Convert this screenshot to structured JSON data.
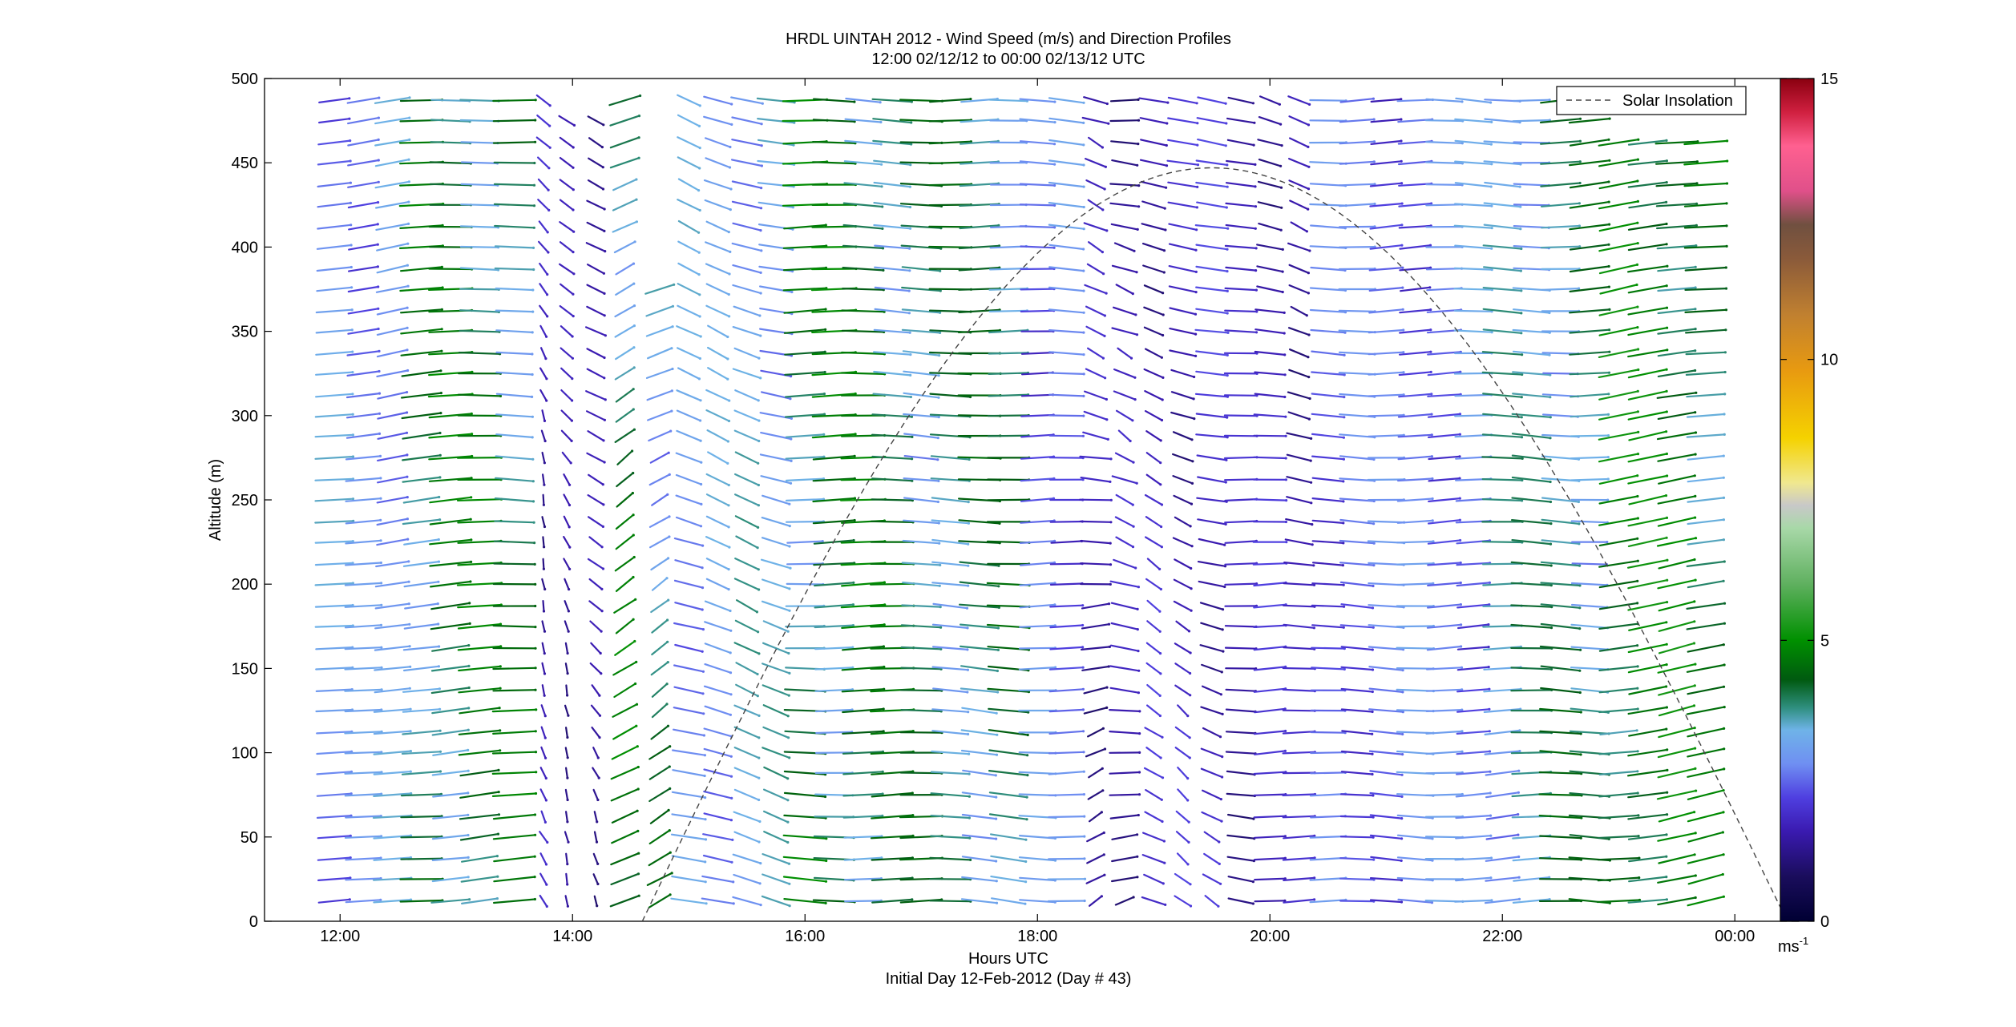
{
  "chart_data": {
    "type": "quiver",
    "title": "HRDL UINTAH 2012 - Wind Speed (m/s) and Direction Profiles",
    "subtitle": "12:00 02/12/12 to 00:00 02/13/12  UTC",
    "xlabel": "Hours UTC",
    "xlabel2": "Initial Day 12-Feb-2012 (Day # 43)",
    "ylabel": "Altitude (m)",
    "x_range_hours": [
      11.35,
      24.55
    ],
    "ylim": [
      0,
      500
    ],
    "x_ticks": [
      {
        "value": 12,
        "label": "12:00"
      },
      {
        "value": 14,
        "label": "14:00"
      },
      {
        "value": 16,
        "label": "16:00"
      },
      {
        "value": 18,
        "label": "18:00"
      },
      {
        "value": 20,
        "label": "20:00"
      },
      {
        "value": 22,
        "label": "22:00"
      },
      {
        "value": 24,
        "label": "00:00"
      }
    ],
    "y_ticks": [
      {
        "value": 0,
        "label": "0"
      },
      {
        "value": 50,
        "label": "50"
      },
      {
        "value": 100,
        "label": "100"
      },
      {
        "value": 150,
        "label": "150"
      },
      {
        "value": 200,
        "label": "200"
      },
      {
        "value": 250,
        "label": "250"
      },
      {
        "value": 300,
        "label": "300"
      },
      {
        "value": 350,
        "label": "350"
      },
      {
        "value": 400,
        "label": "400"
      },
      {
        "value": 450,
        "label": "450"
      },
      {
        "value": 500,
        "label": "500"
      }
    ],
    "legend": {
      "label": "Solar Insolation",
      "position": "top-right",
      "style": "dashed"
    },
    "solar_insolation": {
      "start_hour": 14.6,
      "peak_hour": 19.5,
      "end_hour": 24.45,
      "peak_altitude": 447
    },
    "colorbar": {
      "min": 0,
      "max": 15,
      "unit_label": "ms",
      "unit_exponent": "-1",
      "ticks": [
        {
          "value": 0,
          "label": "0"
        },
        {
          "value": 5,
          "label": "5"
        },
        {
          "value": 10,
          "label": "10"
        },
        {
          "value": 15,
          "label": "15"
        }
      ],
      "stops": [
        {
          "value": 0,
          "color": "#000033"
        },
        {
          "value": 0.8,
          "color": "#1a0d5c"
        },
        {
          "value": 1.6,
          "color": "#3a1ab0"
        },
        {
          "value": 2.2,
          "color": "#4f3fe0"
        },
        {
          "value": 2.8,
          "color": "#6f8ff2"
        },
        {
          "value": 3.4,
          "color": "#6fb3e8"
        },
        {
          "value": 3.8,
          "color": "#2f8f7f"
        },
        {
          "value": 4.3,
          "color": "#005a10"
        },
        {
          "value": 5.0,
          "color": "#009000"
        },
        {
          "value": 6.0,
          "color": "#5fb05f"
        },
        {
          "value": 7.0,
          "color": "#a8d8a8"
        },
        {
          "value": 7.4,
          "color": "#c8c8c8"
        },
        {
          "value": 7.8,
          "color": "#f0e890"
        },
        {
          "value": 8.6,
          "color": "#f5d200"
        },
        {
          "value": 9.8,
          "color": "#e89a10"
        },
        {
          "value": 10.8,
          "color": "#c08030"
        },
        {
          "value": 11.8,
          "color": "#8a5a3a"
        },
        {
          "value": 12.4,
          "color": "#705040"
        },
        {
          "value": 13.0,
          "color": "#e0508a"
        },
        {
          "value": 13.8,
          "color": "#ff6090"
        },
        {
          "value": 14.4,
          "color": "#d02040"
        },
        {
          "value": 15,
          "color": "#8a0010"
        }
      ]
    },
    "profile_times_hours": [
      11.95,
      12.2,
      12.45,
      12.7,
      12.95,
      13.2,
      13.5,
      13.75,
      13.95,
      14.2,
      14.45,
      14.75,
      15.0,
      15.25,
      15.5,
      15.75,
      16.0,
      16.25,
      16.5,
      16.75,
      17.0,
      17.25,
      17.5,
      17.75,
      18.0,
      18.25,
      18.5,
      18.75,
      19.0,
      19.25,
      19.5,
      19.75,
      20.0,
      20.25,
      20.5,
      20.75,
      21.0,
      21.25,
      21.5,
      21.75,
      22.0,
      22.25,
      22.5,
      22.75,
      23.0,
      23.25,
      23.5,
      23.75
    ],
    "altitude_bins_m": [
      12,
      25,
      37,
      50,
      62,
      75,
      88,
      100,
      112,
      125,
      137,
      150,
      162,
      175,
      187,
      200,
      212,
      225,
      237,
      250,
      262,
      275,
      288,
      300,
      312,
      325,
      337,
      350,
      362,
      375,
      387,
      400,
      412,
      425,
      437,
      450,
      462,
      475,
      487
    ],
    "profiles": [
      {
        "hour": 11.95,
        "top": 495,
        "regime": "sw_weak",
        "speed_range": [
          1.0,
          3.5
        ],
        "direction_deg": [
          245,
          265
        ]
      },
      {
        "hour": 12.2,
        "top": 490,
        "regime": "sw_weak",
        "speed_range": [
          1.2,
          3.2
        ],
        "direction_deg": [
          240,
          265
        ]
      },
      {
        "hour": 12.45,
        "top": 490,
        "regime": "sw_weak",
        "speed_range": [
          1.5,
          3.5
        ],
        "direction_deg": [
          235,
          265
        ]
      },
      {
        "hour": 12.7,
        "top": 490,
        "regime": "w_mod",
        "speed_range": [
          1.5,
          4.8
        ],
        "direction_deg": [
          245,
          280
        ]
      },
      {
        "hour": 12.95,
        "top": 490,
        "regime": "w_mod",
        "speed_range": [
          1.5,
          5.0
        ],
        "direction_deg": [
          245,
          280
        ]
      },
      {
        "hour": 13.2,
        "top": 490,
        "regime": "w_mod",
        "speed_range": [
          1.5,
          5.0
        ],
        "direction_deg": [
          245,
          280
        ]
      },
      {
        "hour": 13.5,
        "top": 490,
        "regime": "w_mod",
        "speed_range": [
          1.5,
          4.8
        ],
        "direction_deg": [
          245,
          285
        ]
      },
      {
        "hour": 13.75,
        "top": 495,
        "regime": "nnw_weak",
        "speed_range": [
          0.5,
          2.0
        ],
        "direction_deg": [
          330,
          360
        ]
      },
      {
        "hour": 13.95,
        "top": 480,
        "regime": "nnw_weak",
        "speed_range": [
          0.5,
          1.8
        ],
        "direction_deg": [
          330,
          360
        ]
      },
      {
        "hour": 14.2,
        "top": 480,
        "regime": "nnw_weak",
        "speed_range": [
          0.5,
          1.8
        ],
        "direction_deg": [
          320,
          360
        ]
      },
      {
        "hour": 14.45,
        "top": 495,
        "regime": "sw_green",
        "speed_range": [
          1.5,
          5.0
        ],
        "direction_deg": [
          200,
          240
        ]
      },
      {
        "hour": 14.75,
        "top": 380,
        "regime": "sw_green",
        "speed_range": [
          1.0,
          4.5
        ],
        "direction_deg": [
          200,
          245
        ]
      },
      {
        "hour": 15.0,
        "top": 495,
        "regime": "nw_light",
        "speed_range": [
          1.5,
          3.5
        ],
        "direction_deg": [
          290,
          330
        ]
      },
      {
        "hour": 15.25,
        "top": 495,
        "regime": "nw_light",
        "speed_range": [
          1.5,
          3.5
        ],
        "direction_deg": [
          290,
          330
        ]
      },
      {
        "hour": 15.5,
        "top": 495,
        "regime": "nw_light",
        "speed_range": [
          1.5,
          3.8
        ],
        "direction_deg": [
          290,
          330
        ]
      },
      {
        "hour": 15.75,
        "top": 495,
        "regime": "nw_light",
        "speed_range": [
          1.5,
          3.8
        ],
        "direction_deg": [
          285,
          325
        ]
      },
      {
        "hour": 16.0,
        "top": 495,
        "regime": "w_green",
        "speed_range": [
          1.5,
          5.0
        ],
        "direction_deg": [
          255,
          290
        ]
      },
      {
        "hour": 16.25,
        "top": 495,
        "regime": "w_green",
        "speed_range": [
          1.5,
          5.0
        ],
        "direction_deg": [
          255,
          290
        ]
      },
      {
        "hour": 16.5,
        "top": 495,
        "regime": "w_green",
        "speed_range": [
          1.5,
          5.0
        ],
        "direction_deg": [
          255,
          290
        ]
      },
      {
        "hour": 16.75,
        "top": 495,
        "regime": "w_green",
        "speed_range": [
          1.5,
          4.8
        ],
        "direction_deg": [
          255,
          290
        ]
      },
      {
        "hour": 17.0,
        "top": 495,
        "regime": "w_green",
        "speed_range": [
          1.5,
          4.5
        ],
        "direction_deg": [
          255,
          290
        ]
      },
      {
        "hour": 17.25,
        "top": 495,
        "regime": "w_green",
        "speed_range": [
          1.5,
          4.5
        ],
        "direction_deg": [
          255,
          290
        ]
      },
      {
        "hour": 17.5,
        "top": 495,
        "regime": "w_green",
        "speed_range": [
          1.5,
          4.5
        ],
        "direction_deg": [
          255,
          295
        ]
      },
      {
        "hour": 17.75,
        "top": 495,
        "regime": "w_green",
        "speed_range": [
          1.5,
          4.5
        ],
        "direction_deg": [
          260,
          300
        ]
      },
      {
        "hour": 18.0,
        "top": 495,
        "regime": "w_purple",
        "speed_range": [
          0.8,
          3.2
        ],
        "direction_deg": [
          255,
          300
        ]
      },
      {
        "hour": 18.25,
        "top": 495,
        "regime": "w_purple",
        "speed_range": [
          0.8,
          3.2
        ],
        "direction_deg": [
          255,
          300
        ]
      },
      {
        "hour": 18.5,
        "top": 495,
        "regime": "var_dark",
        "speed_range": [
          0.2,
          2.0
        ],
        "direction_deg": [
          200,
          340
        ]
      },
      {
        "hour": 18.75,
        "top": 495,
        "regime": "var_dark",
        "speed_range": [
          0.2,
          2.0
        ],
        "direction_deg": [
          200,
          340
        ]
      },
      {
        "hour": 19.0,
        "top": 495,
        "regime": "nw_dark",
        "speed_range": [
          0.3,
          2.2
        ],
        "direction_deg": [
          290,
          340
        ]
      },
      {
        "hour": 19.25,
        "top": 495,
        "regime": "nw_dark",
        "speed_range": [
          0.3,
          2.2
        ],
        "direction_deg": [
          290,
          345
        ]
      },
      {
        "hour": 19.5,
        "top": 495,
        "regime": "nw_dark",
        "speed_range": [
          0.3,
          2.4
        ],
        "direction_deg": [
          280,
          340
        ]
      },
      {
        "hour": 19.75,
        "top": 495,
        "regime": "nw_dark",
        "speed_range": [
          0.3,
          2.0
        ],
        "direction_deg": [
          260,
          320
        ]
      },
      {
        "hour": 20.0,
        "top": 495,
        "regime": "nw_dark",
        "speed_range": [
          0.3,
          2.2
        ],
        "direction_deg": [
          250,
          320
        ]
      },
      {
        "hour": 20.25,
        "top": 495,
        "regime": "nw_dark",
        "speed_range": [
          0.3,
          2.0
        ],
        "direction_deg": [
          250,
          330
        ]
      },
      {
        "hour": 20.5,
        "top": 495,
        "regime": "w_purple",
        "speed_range": [
          0.8,
          3.0
        ],
        "direction_deg": [
          250,
          290
        ]
      },
      {
        "hour": 20.75,
        "top": 495,
        "regime": "w_purple",
        "speed_range": [
          0.8,
          3.0
        ],
        "direction_deg": [
          250,
          290
        ]
      },
      {
        "hour": 21.0,
        "top": 495,
        "regime": "w_purple",
        "speed_range": [
          0.8,
          3.0
        ],
        "direction_deg": [
          250,
          290
        ]
      },
      {
        "hour": 21.25,
        "top": 495,
        "regime": "w_purple",
        "speed_range": [
          0.8,
          3.2
        ],
        "direction_deg": [
          250,
          290
        ]
      },
      {
        "hour": 21.5,
        "top": 495,
        "regime": "w_purple",
        "speed_range": [
          1.0,
          3.2
        ],
        "direction_deg": [
          250,
          290
        ]
      },
      {
        "hour": 21.75,
        "top": 495,
        "regime": "w_purple",
        "speed_range": [
          1.0,
          3.4
        ],
        "direction_deg": [
          250,
          290
        ]
      },
      {
        "hour": 22.0,
        "top": 495,
        "regime": "w_mixed",
        "speed_range": [
          1.5,
          4.0
        ],
        "direction_deg": [
          245,
          290
        ]
      },
      {
        "hour": 22.25,
        "top": 495,
        "regime": "w_mixed",
        "speed_range": [
          1.5,
          4.2
        ],
        "direction_deg": [
          245,
          290
        ]
      },
      {
        "hour": 22.5,
        "top": 495,
        "regime": "w_mixed",
        "speed_range": [
          1.5,
          4.5
        ],
        "direction_deg": [
          245,
          290
        ]
      },
      {
        "hour": 22.75,
        "top": 480,
        "regime": "w_mixed",
        "speed_range": [
          1.5,
          4.5
        ],
        "direction_deg": [
          245,
          290
        ]
      },
      {
        "hour": 23.0,
        "top": 470,
        "regime": "sw_green",
        "speed_range": [
          2.5,
          5.2
        ],
        "direction_deg": [
          235,
          265
        ]
      },
      {
        "hour": 23.25,
        "top": 470,
        "regime": "sw_green",
        "speed_range": [
          2.5,
          5.2
        ],
        "direction_deg": [
          235,
          265
        ]
      },
      {
        "hour": 23.5,
        "top": 470,
        "regime": "sw_green",
        "speed_range": [
          2.5,
          5.2
        ],
        "direction_deg": [
          230,
          265
        ]
      },
      {
        "hour": 23.75,
        "top": 470,
        "regime": "sw_green",
        "speed_range": [
          2.0,
          5.0
        ],
        "direction_deg": [
          230,
          265
        ]
      }
    ]
  }
}
